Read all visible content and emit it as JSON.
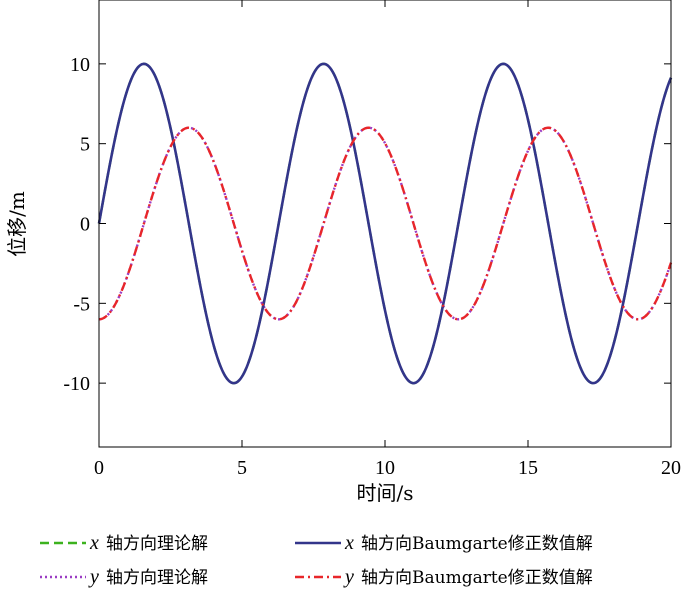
{
  "chart_data": {
    "type": "line",
    "title": "",
    "xlabel": "时间/s",
    "ylabel": "位移/m",
    "xlim": [
      0,
      20
    ],
    "ylim": [
      -14,
      14
    ],
    "x_ticks": [
      0,
      5,
      10,
      15,
      20
    ],
    "y_ticks": [
      -10,
      -5,
      0,
      5,
      10
    ],
    "x_tick_labels": [
      "0",
      "5",
      "10",
      "15",
      "20"
    ],
    "y_tick_labels": [
      "-10",
      "-5",
      "0",
      "5",
      "10"
    ],
    "grid": false,
    "legend_position": "bottom",
    "series": [
      {
        "var": "x",
        "name": "轴方向理论解",
        "color": "#3cb21e",
        "style": "dash",
        "function": "10*sin(t)",
        "x": [
          0,
          1,
          2,
          3,
          4,
          5,
          6,
          7,
          8,
          9,
          10,
          11,
          12,
          13,
          14,
          15,
          16,
          17,
          18,
          19,
          20
        ],
        "values": [
          0,
          8.41,
          9.09,
          1.41,
          -7.57,
          -9.59,
          -2.79,
          6.57,
          9.89,
          4.12,
          -5.44,
          -10.0,
          -5.37,
          4.2,
          9.91,
          6.5,
          -2.88,
          -9.61,
          -7.51,
          1.5,
          9.13
        ]
      },
      {
        "var": "x",
        "name": "轴方向Baumgarte修正数值解",
        "color": "#33358a",
        "style": "solid",
        "function": "10*sin(t)",
        "x": [
          0,
          1,
          2,
          3,
          4,
          5,
          6,
          7,
          8,
          9,
          10,
          11,
          12,
          13,
          14,
          15,
          16,
          17,
          18,
          19,
          20
        ],
        "values": [
          0,
          8.41,
          9.09,
          1.41,
          -7.57,
          -9.59,
          -2.79,
          6.57,
          9.89,
          4.12,
          -5.44,
          -10.0,
          -5.37,
          4.2,
          9.91,
          6.5,
          -2.88,
          -9.61,
          -7.51,
          1.5,
          9.13
        ]
      },
      {
        "var": "y",
        "name": "轴方向理论解",
        "color": "#9b3cc4",
        "style": "dot",
        "function": "-6*cos(t)",
        "x": [
          0,
          1,
          2,
          3,
          4,
          5,
          6,
          7,
          8,
          9,
          10,
          11,
          12,
          13,
          14,
          15,
          16,
          17,
          18,
          19,
          20
        ],
        "values": [
          -6.0,
          -3.24,
          2.5,
          5.94,
          3.92,
          -1.7,
          -5.76,
          -4.52,
          0.87,
          5.47,
          5.03,
          -0.03,
          -5.06,
          -5.47,
          -0.82,
          4.56,
          5.75,
          1.65,
          -3.96,
          -5.93,
          -2.45
        ]
      },
      {
        "var": "y",
        "name": "轴方向Baumgarte修正数值解",
        "color": "#e8262a",
        "style": "dashdot",
        "function": "-6*cos(t)",
        "x": [
          0,
          1,
          2,
          3,
          4,
          5,
          6,
          7,
          8,
          9,
          10,
          11,
          12,
          13,
          14,
          15,
          16,
          17,
          18,
          19,
          20
        ],
        "values": [
          -6.0,
          -3.24,
          2.5,
          5.94,
          3.92,
          -1.7,
          -5.76,
          -4.52,
          0.87,
          5.47,
          5.03,
          -0.03,
          -5.06,
          -5.47,
          -0.82,
          4.56,
          5.75,
          1.65,
          -3.96,
          -5.93,
          -2.45
        ]
      }
    ]
  }
}
